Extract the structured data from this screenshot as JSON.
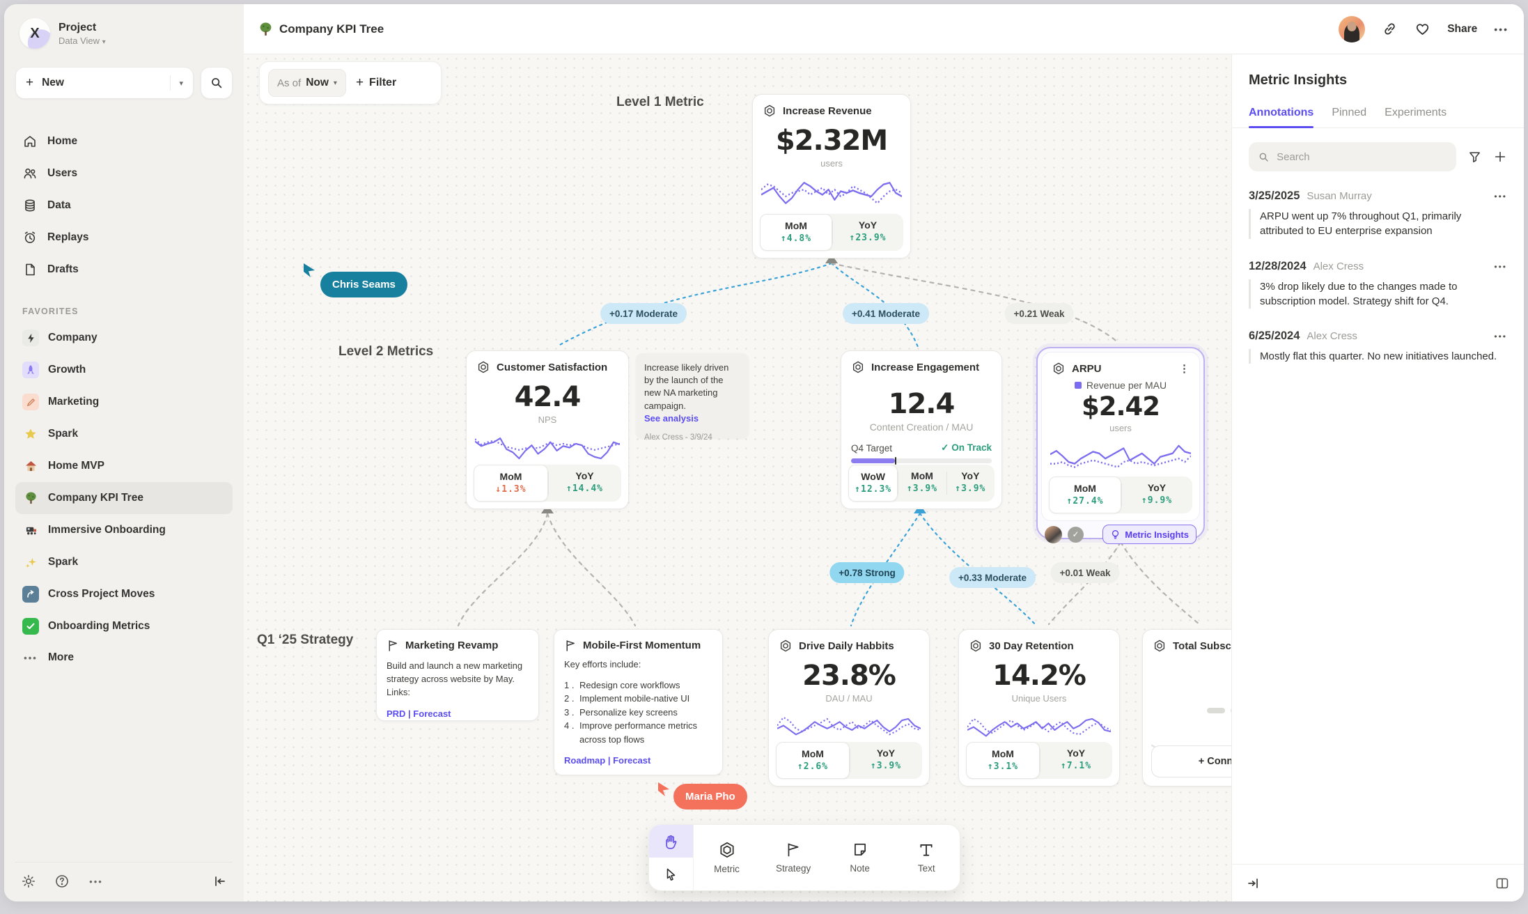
{
  "app": {
    "accent": "#5b4df0",
    "positive": "#2a9d7c",
    "negative": "#e06c4a",
    "spark_purple": "#7b6cf0",
    "cursor_teal": "#17809e",
    "cursor_coral": "#f4715c"
  },
  "sidebar": {
    "project_name": "Project",
    "project_view": "Data View",
    "new_label": "New",
    "nav": [
      {
        "label": "Home"
      },
      {
        "label": "Users"
      },
      {
        "label": "Data"
      },
      {
        "label": "Replays"
      },
      {
        "label": "Drafts"
      }
    ],
    "favorites_title": "FAVORITES",
    "favorites": [
      {
        "label": "Company"
      },
      {
        "label": "Growth"
      },
      {
        "label": "Marketing"
      },
      {
        "label": "Spark"
      },
      {
        "label": "Home MVP"
      },
      {
        "label": "Company KPI Tree"
      },
      {
        "label": "Immersive Onboarding"
      },
      {
        "label": "Spark"
      },
      {
        "label": "Cross Project Moves"
      },
      {
        "label": "Onboarding Metrics"
      }
    ],
    "more_label": "More"
  },
  "topbar": {
    "title": "Company KPI Tree",
    "share_label": "Share"
  },
  "canvas": {
    "asof_label": "As of",
    "asof_value": "Now",
    "filter_label": "Filter",
    "level1_label": "Level 1 Metric",
    "level2_label": "Level 2 Metrics",
    "strategy_label": "Q1 ‘25 Strategy",
    "cursors": {
      "chris": "Chris Seams",
      "maria": "Maria Pho"
    },
    "correlations": [
      "+0.17 Moderate",
      "+0.41 Moderate",
      "+0.21 Weak",
      "+0.78 Strong",
      "+0.33 Moderate",
      "+0.01 Weak"
    ],
    "cards": {
      "revenue": {
        "title": "Increase Revenue",
        "value": "$2.32M",
        "unit": "users",
        "stats": [
          {
            "label": "MoM",
            "arrow": "↑",
            "value": "4.8%"
          },
          {
            "label": "YoY",
            "arrow": "↑",
            "value": "23.9%"
          }
        ],
        "color": "#7b6cf0",
        "solid": [
          20,
          24,
          28,
          18,
          10,
          16,
          26,
          34,
          30,
          24,
          20,
          26,
          14,
          24,
          22,
          25,
          22,
          20,
          18,
          26,
          32,
          34,
          22,
          18
        ],
        "dotted": [
          26,
          32,
          30,
          24,
          18,
          22,
          24,
          26,
          20,
          24,
          28,
          20,
          26,
          18,
          22,
          30,
          26,
          22,
          16,
          10,
          18,
          24,
          26,
          22
        ]
      },
      "satisfaction": {
        "title": "Customer Satisfaction",
        "value": "42.4",
        "unit": "NPS",
        "stats": [
          {
            "label": "MoM",
            "arrow": "↓",
            "value": "1.3%"
          },
          {
            "label": "YoY",
            "arrow": "↑",
            "value": "14.4%"
          }
        ],
        "color": "#7b6cf0",
        "solid": [
          30,
          24,
          27,
          29,
          34,
          20,
          16,
          8,
          18,
          25,
          14,
          20,
          29,
          18,
          24,
          22,
          27,
          25,
          14,
          10,
          8,
          16,
          29,
          26
        ],
        "dotted": [
          33,
          26,
          29,
          31,
          27,
          23,
          21,
          19,
          21,
          23,
          21,
          25,
          29,
          25,
          27,
          25,
          27,
          25,
          21,
          19,
          21,
          23,
          25,
          27
        ]
      },
      "engagement": {
        "title": "Increase Engagement",
        "value": "12.4",
        "unit": "Content Creation / MAU",
        "target_label": "Q4 Target",
        "target_status": "On Track",
        "stats": [
          {
            "label": "WoW",
            "arrow": "↑",
            "value": "12.3%"
          },
          {
            "label": "MoM",
            "arrow": "↑",
            "value": "3.9%"
          },
          {
            "label": "YoY",
            "arrow": "↑",
            "value": "3.9%"
          }
        ]
      },
      "arpu": {
        "title": "ARPU",
        "legend": "Revenue per MAU",
        "value": "$2.42",
        "unit": "users",
        "insights_label": "Metric Insights",
        "stats": [
          {
            "label": "MoM",
            "arrow": "↑",
            "value": "27.4%"
          },
          {
            "label": "YoY",
            "arrow": "↑",
            "value": "9.9%"
          }
        ],
        "color": "#7b6cf0",
        "solid": [
          26,
          30,
          24,
          17,
          15,
          21,
          25,
          29,
          27,
          21,
          25,
          29,
          33,
          19,
          23,
          27,
          21,
          15,
          23,
          25,
          27,
          36,
          29,
          27
        ],
        "dotted": [
          15,
          15,
          17,
          13,
          11,
          15,
          17,
          19,
          17,
          15,
          13,
          11,
          17,
          19,
          15,
          17,
          15,
          13,
          15,
          17,
          19,
          21,
          17,
          24
        ]
      },
      "drive": {
        "title": "Drive Daily Habbits",
        "value": "23.8%",
        "unit": "DAU / MAU",
        "stats": [
          {
            "label": "MoM",
            "arrow": "↑",
            "value": "2.6%"
          },
          {
            "label": "YoY",
            "arrow": "↑",
            "value": "3.9%"
          }
        ],
        "color": "#7b6cf0",
        "solid": [
          18,
          22,
          16,
          10,
          14,
          20,
          27,
          22,
          18,
          22,
          27,
          20,
          16,
          22,
          18,
          24,
          29,
          20,
          14,
          20,
          29,
          31,
          22,
          18
        ],
        "dotted": [
          22,
          33,
          28,
          18,
          14,
          18,
          22,
          26,
          31,
          20,
          16,
          22,
          27,
          18,
          22,
          29,
          22,
          16,
          10,
          14,
          20,
          24,
          18,
          16
        ]
      },
      "retention": {
        "title": "30 Day Retention",
        "value": "14.2%",
        "unit": "Unique Users",
        "stats": [
          {
            "label": "MoM",
            "arrow": "↑",
            "value": "3.1%"
          },
          {
            "label": "YoY",
            "arrow": "↑",
            "value": "7.1%"
          }
        ],
        "color": "#7b6cf0",
        "solid": [
          16,
          20,
          14,
          8,
          16,
          22,
          27,
          20,
          25,
          18,
          22,
          27,
          18,
          25,
          16,
          22,
          27,
          18,
          22,
          29,
          31,
          26,
          16,
          14
        ],
        "dotted": [
          20,
          31,
          26,
          16,
          12,
          18,
          24,
          29,
          22,
          16,
          20,
          26,
          20,
          14,
          22,
          27,
          18,
          12,
          10,
          16,
          22,
          26,
          20,
          16
        ]
      },
      "subscriptions": {
        "title": "Total Subscript",
        "connect_label": "+ Connect",
        "color": "#e3e2de",
        "solid": [
          20,
          16,
          12,
          14,
          12,
          16,
          14,
          18,
          14,
          16,
          12,
          14,
          16,
          12,
          16,
          14,
          18,
          16,
          14,
          16,
          14,
          12,
          14,
          16
        ]
      }
    },
    "note": {
      "text": "Increase likely driven by the launch of the new NA marketing campaign.",
      "link_label": "See analysis",
      "byline": "Alex Cress - 3/9/24"
    },
    "strategies": {
      "marketing": {
        "title": "Marketing Revamp",
        "body": "Build and launch a new marketing strategy across website by May. Links:",
        "links": "PRD | Forecast"
      },
      "mobile": {
        "title": "Mobile-First Momentum",
        "intro": "Key efforts include:",
        "items": [
          "Redesign core workflows",
          "Implement mobile-native UI",
          "Personalize key screens",
          "Improve performance metrics across top flows"
        ],
        "links": "Roadmap | Forecast"
      }
    },
    "toolbar": {
      "tools": [
        {
          "label": "Metric"
        },
        {
          "label": "Strategy"
        },
        {
          "label": "Note"
        },
        {
          "label": "Text"
        }
      ]
    }
  },
  "insights": {
    "title": "Metric Insights",
    "tabs": [
      {
        "label": "Annotations"
      },
      {
        "label": "Pinned"
      },
      {
        "label": "Experiments"
      }
    ],
    "search_placeholder": "Search",
    "annotations": [
      {
        "date": "3/25/2025",
        "author": "Susan Murray",
        "text": "ARPU went up 7% throughout Q1, primarily attributed to EU enterprise expansion"
      },
      {
        "date": "12/28/2024",
        "author": "Alex Cress",
        "text": "3% drop likely due to the changes made to subscription model. Strategy shift for Q4."
      },
      {
        "date": "6/25/2024",
        "author": "Alex Cress",
        "text": "Mostly flat this quarter. No new initiatives launched."
      }
    ]
  }
}
